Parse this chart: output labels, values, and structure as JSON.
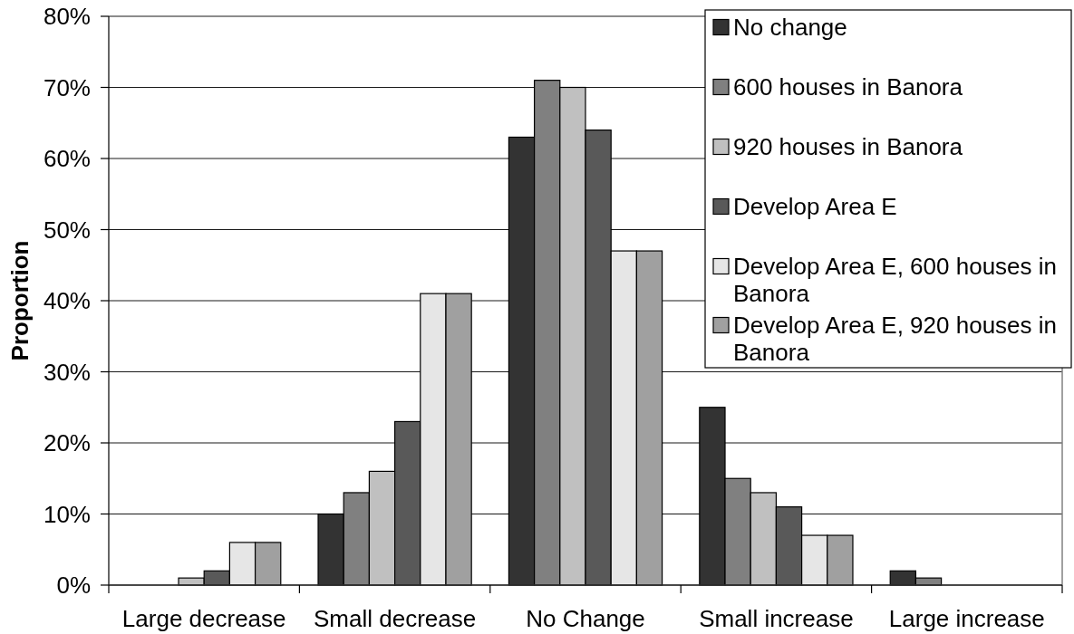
{
  "chart_data": {
    "type": "bar",
    "ylabel": "Proportion",
    "categories": [
      "Large decrease",
      "Small decrease",
      "No Change",
      "Small increase",
      "Large increase"
    ],
    "series": [
      {
        "name": "No change",
        "color": "#333333",
        "values": [
          0,
          10,
          63,
          25,
          2
        ]
      },
      {
        "name": "600 houses in Banora",
        "color": "#808080",
        "values": [
          0,
          13,
          71,
          15,
          1
        ]
      },
      {
        "name": "920 houses in Banora",
        "color": "#c0c0c0",
        "values": [
          1,
          16,
          70,
          13,
          0
        ]
      },
      {
        "name": "Develop Area E",
        "color": "#595959",
        "values": [
          2,
          23,
          64,
          11,
          0
        ]
      },
      {
        "name": "Develop Area E, 600 houses in Banora",
        "color": "#e6e6e6",
        "values": [
          6,
          41,
          47,
          7,
          0
        ]
      },
      {
        "name": "Develop Area E, 920 houses in Banora",
        "color": "#a0a0a0",
        "values": [
          6,
          41,
          47,
          7,
          0
        ]
      }
    ],
    "ylim": [
      0,
      80
    ],
    "yticks": [
      {
        "value": 0,
        "label": "0%"
      },
      {
        "value": 10,
        "label": "10%"
      },
      {
        "value": 20,
        "label": "20%"
      },
      {
        "value": 30,
        "label": "30%"
      },
      {
        "value": 40,
        "label": "40%"
      },
      {
        "value": 50,
        "label": "50%"
      },
      {
        "value": 60,
        "label": "60%"
      },
      {
        "value": 70,
        "label": "70%"
      },
      {
        "value": 80,
        "label": "80%"
      }
    ],
    "grid": "y",
    "legend": "top right"
  }
}
